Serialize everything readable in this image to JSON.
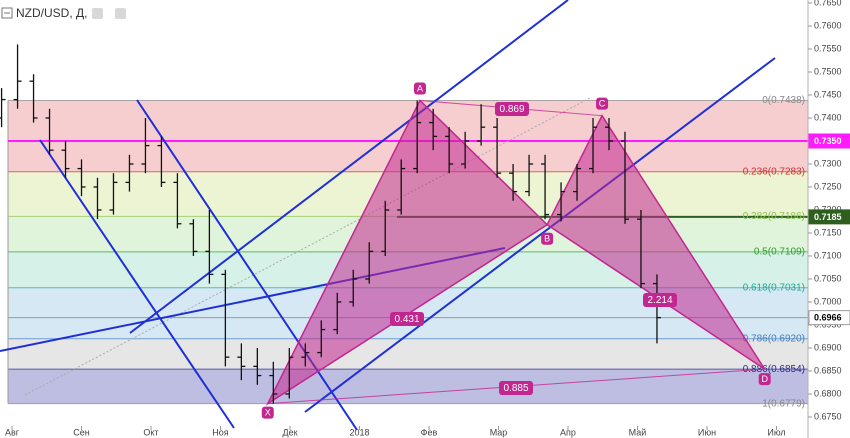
{
  "chart_data": {
    "type": "ohlc",
    "title": "NZD/USD, Д,",
    "color": "#111111",
    "x": [
      -0.15,
      0.08,
      0.31,
      0.54,
      0.77,
      1.0,
      1.23,
      1.46,
      1.69,
      1.92,
      2.15,
      2.38,
      2.61,
      2.84,
      3.07,
      3.3,
      3.53,
      3.76,
      3.99,
      4.22,
      4.45,
      4.68,
      4.91,
      5.14,
      5.37,
      5.6,
      5.83,
      6.06,
      6.29,
      6.52,
      6.75,
      6.98,
      7.21,
      7.44,
      7.67,
      7.9,
      8.13,
      8.36,
      8.59,
      8.82,
      9.05,
      9.28
    ],
    "open": [
      0.74,
      0.744,
      0.748,
      0.74,
      0.733,
      0.729,
      0.725,
      0.72,
      0.726,
      0.73,
      0.734,
      0.726,
      0.717,
      0.711,
      0.706,
      0.688,
      0.686,
      0.684,
      0.68,
      0.688,
      0.689,
      0.694,
      0.7,
      0.705,
      0.711,
      0.72,
      0.729,
      0.739,
      0.736,
      0.73,
      0.735,
      0.738,
      0.728,
      0.724,
      0.73,
      0.719,
      0.724,
      0.729,
      0.738,
      0.735,
      0.718,
      0.704
    ],
    "high": [
      0.7465,
      0.756,
      0.7495,
      0.742,
      0.735,
      0.731,
      0.727,
      0.728,
      0.732,
      0.74,
      0.736,
      0.728,
      0.718,
      0.72,
      0.707,
      0.691,
      0.69,
      0.687,
      0.69,
      0.691,
      0.696,
      0.702,
      0.707,
      0.713,
      0.722,
      0.731,
      0.7438,
      0.742,
      0.738,
      0.737,
      0.743,
      0.74,
      0.73,
      0.732,
      0.732,
      0.726,
      0.73,
      0.74,
      0.74,
      0.737,
      0.72,
      0.706
    ],
    "low": [
      0.738,
      0.742,
      0.739,
      0.732,
      0.727,
      0.723,
      0.718,
      0.719,
      0.724,
      0.728,
      0.725,
      0.716,
      0.71,
      0.704,
      0.686,
      0.683,
      0.682,
      0.6779,
      0.679,
      0.686,
      0.688,
      0.693,
      0.699,
      0.704,
      0.71,
      0.719,
      0.728,
      0.733,
      0.728,
      0.729,
      0.734,
      0.727,
      0.722,
      0.723,
      0.718,
      0.7175,
      0.722,
      0.728,
      0.733,
      0.717,
      0.703,
      0.691
    ],
    "close": [
      0.744,
      0.748,
      0.74,
      0.733,
      0.729,
      0.725,
      0.72,
      0.726,
      0.73,
      0.734,
      0.726,
      0.717,
      0.711,
      0.706,
      0.688,
      0.686,
      0.684,
      0.68,
      0.688,
      0.689,
      0.694,
      0.7,
      0.705,
      0.711,
      0.72,
      0.729,
      0.739,
      0.736,
      0.73,
      0.735,
      0.738,
      0.728,
      0.724,
      0.73,
      0.719,
      0.724,
      0.729,
      0.738,
      0.735,
      0.718,
      0.704,
      0.6966
    ],
    "xlim": [
      -0.1727,
      11.4532
    ],
    "xticks": [
      {
        "value": 0,
        "label": "Авг"
      },
      {
        "value": 1,
        "label": "Сен"
      },
      {
        "value": 2,
        "label": "Окт"
      },
      {
        "value": 3,
        "label": "Ноя"
      },
      {
        "value": 4,
        "label": "Дек"
      },
      {
        "value": 5,
        "label": "2018"
      },
      {
        "value": 6,
        "label": "Фев"
      },
      {
        "value": 7,
        "label": "Мар"
      },
      {
        "value": 8,
        "label": "Апр"
      },
      {
        "value": 9,
        "label": "Май"
      },
      {
        "value": 10,
        "label": "Июн"
      },
      {
        "value": 11,
        "label": "Июл"
      }
    ],
    "ylim": [
      0.67043,
      0.76565
    ],
    "yticks": [
      {
        "value": 0.765,
        "label": "0.7650"
      },
      {
        "value": 0.76,
        "label": "0.7600"
      },
      {
        "value": 0.755,
        "label": "0.7550"
      },
      {
        "value": 0.75,
        "label": "0.7500"
      },
      {
        "value": 0.745,
        "label": "0.7450"
      },
      {
        "value": 0.74,
        "label": "0.7400"
      },
      {
        "value": 0.73,
        "label": "0.7300"
      },
      {
        "value": 0.725,
        "label": "0.7250"
      },
      {
        "value": 0.72,
        "label": "0.7200"
      },
      {
        "value": 0.715,
        "label": "0.7150"
      },
      {
        "value": 0.71,
        "label": "0.7100"
      },
      {
        "value": 0.705,
        "label": "0.7050"
      },
      {
        "value": 0.7,
        "label": "0.7000"
      },
      {
        "value": 0.695,
        "label": "0.6950"
      },
      {
        "value": 0.69,
        "label": "0.6900"
      },
      {
        "value": 0.685,
        "label": "0.6850"
      },
      {
        "value": 0.68,
        "label": "0.6800"
      },
      {
        "value": 0.675,
        "label": "0.6750"
      }
    ],
    "fib": {
      "levels": [
        {
          "value": 0.7438,
          "label": "0(0.7438)",
          "color": "#888888"
        },
        {
          "value": 0.7283,
          "label": "0.236(0.7283)",
          "color": "#d32f2f",
          "zone": "#f4c6c8"
        },
        {
          "value": 0.7186,
          "label": "0.382(0.7186)",
          "color": "#8bc34a",
          "zone": "#eaf2cc"
        },
        {
          "value": 0.7109,
          "label": "0.5(0.7109)",
          "color": "#2e9e2e",
          "zone": "#d9f2d3"
        },
        {
          "value": 0.7031,
          "label": "0.618(0.7031)",
          "color": "#26a69a",
          "zone": "#cfeee4"
        },
        {
          "value": 0.692,
          "label": "0.786(0.6920)",
          "color": "#3f7fbf",
          "zone": "#cfe4f2"
        },
        {
          "value": 0.6854,
          "label": "0.886(0.6854)",
          "color": "#2a2a8a",
          "zone": "#e2e2e2"
        },
        {
          "value": 0.6779,
          "label": "1(0.6779)",
          "color": "#888888",
          "zone": "#b3b3de"
        }
      ]
    },
    "hlines": [
      {
        "value": 0.735,
        "label": "0.7350",
        "color": "#ff1aff",
        "text_color": "#ffffff"
      },
      {
        "value": 0.7185,
        "label": "0.7185",
        "color": "#2f5f1f",
        "text_color": "#ffffff"
      },
      {
        "value": 0.6966,
        "label": "0.6966",
        "color": "#9a9a9a",
        "text_color": "#000000"
      }
    ],
    "pattern": {
      "color": "#c2268f",
      "points": [
        {
          "label": "X",
          "x": 3.68,
          "y": 0.6779
        },
        {
          "label": "A",
          "x": 5.87,
          "y": 0.7438
        },
        {
          "label": "B",
          "x": 7.7,
          "y": 0.7168
        },
        {
          "label": "C",
          "x": 8.49,
          "y": 0.7405
        },
        {
          "label": "D",
          "x": 10.83,
          "y": 0.6854
        }
      ],
      "ratios": [
        0.869,
        0.431,
        2.214,
        0.885
      ]
    }
  }
}
